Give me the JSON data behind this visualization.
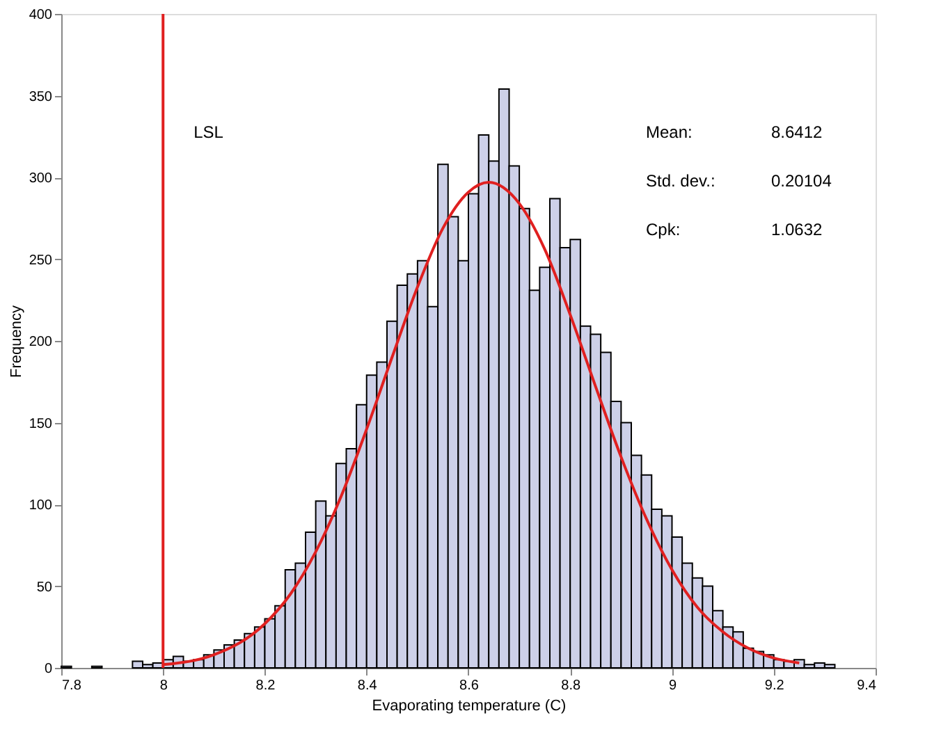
{
  "chart_data": {
    "type": "histogram",
    "xlabel": "Evaporating temperature (C)",
    "ylabel": "Frequency",
    "bins": [
      7.8,
      7.82,
      7.84,
      7.86,
      7.88,
      7.9,
      7.92,
      7.94,
      7.96,
      7.98,
      8.0,
      8.02,
      8.04,
      8.06,
      8.08,
      8.1,
      8.12,
      8.14,
      8.16,
      8.18,
      8.2,
      8.22,
      8.24,
      8.26,
      8.28,
      8.3,
      8.32,
      8.34,
      8.36,
      8.38,
      8.4,
      8.42,
      8.44,
      8.46,
      8.48,
      8.5,
      8.52,
      8.54,
      8.56,
      8.58,
      8.6,
      8.62,
      8.64,
      8.66,
      8.68,
      8.7,
      8.72,
      8.74,
      8.76,
      8.78,
      8.8,
      8.82,
      8.84,
      8.86,
      8.88,
      8.9,
      8.92,
      8.94,
      8.96,
      8.98,
      9.0,
      9.02,
      9.04,
      9.06,
      9.08,
      9.1,
      9.12,
      9.14,
      9.16,
      9.18,
      9.2,
      9.22,
      9.24,
      9.26,
      9.28,
      9.3,
      9.32
    ],
    "values": [
      1,
      0,
      0,
      1,
      0,
      0,
      0,
      4,
      2,
      3,
      5,
      7,
      4,
      5,
      8,
      11,
      14,
      17,
      21,
      25,
      30,
      38,
      60,
      64,
      83,
      102,
      93,
      125,
      134,
      161,
      179,
      187,
      212,
      234,
      241,
      249,
      221,
      308,
      276,
      249,
      290,
      326,
      310,
      354,
      307,
      281,
      231,
      245,
      287,
      257,
      262,
      209,
      204,
      193,
      163,
      150,
      130,
      118,
      97,
      93,
      80,
      64,
      55,
      50,
      35,
      25,
      22,
      12,
      10,
      8,
      5,
      4,
      5,
      2,
      3,
      2
    ],
    "color": "#cdd0e8",
    "series": [
      {
        "type": "line",
        "color": "#e02020",
        "x": [
          8.0,
          8.1,
          8.2,
          8.25,
          8.3,
          8.35,
          8.4,
          8.45,
          8.5,
          8.55,
          8.6,
          8.64,
          8.7,
          8.75,
          8.8,
          8.85,
          8.9,
          8.95,
          9.0,
          9.05,
          9.1,
          9.15,
          9.2,
          9.25
        ],
        "values": [
          2,
          8,
          27,
          45,
          71,
          105,
          146,
          190,
          233,
          269,
          291,
          297,
          284,
          256,
          216,
          172,
          129,
          91,
          60,
          37,
          22,
          12,
          6,
          3
        ]
      }
    ],
    "ref_lines": [
      {
        "axis": "x",
        "value": 8.0,
        "label": "LSL",
        "color": "#e02020"
      }
    ],
    "annotations": [
      "Mean:",
      "8.6412",
      "Std. dev.:",
      "0.20104",
      "Cpk:",
      "1.0632"
    ],
    "xlim": [
      7.8,
      9.4
    ],
    "xticks": [
      7.8,
      8,
      8.2,
      8.4,
      8.6,
      8.8,
      9,
      9.2,
      9.4
    ],
    "ylim": [
      0,
      400
    ],
    "yticks": [
      0,
      50,
      100,
      150,
      200,
      250,
      300,
      350,
      400
    ],
    "grid": false
  }
}
